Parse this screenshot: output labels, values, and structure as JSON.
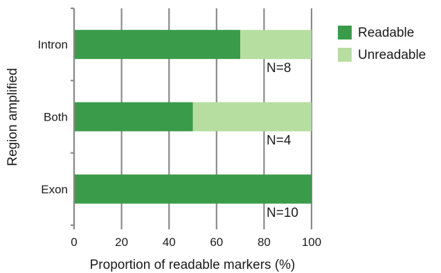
{
  "chart_data": {
    "type": "bar",
    "orientation": "horizontal",
    "stacked": true,
    "xlabel": "Proportion of readable markers (%)",
    "ylabel": "Region amplified",
    "xlim": [
      0,
      100
    ],
    "xticks": [
      "0",
      "20",
      "40",
      "60",
      "80",
      "100"
    ],
    "grid": "vertical",
    "legend_position": "top-right",
    "categories": [
      "Intron",
      "Both",
      "Exon"
    ],
    "series": [
      {
        "name": "Readable",
        "color": "#3a9c4a",
        "values": [
          70,
          50,
          100
        ]
      },
      {
        "name": "Unreadable",
        "color": "#b6dea0",
        "values": [
          30,
          50,
          0
        ]
      }
    ],
    "annotations": [
      "N=8",
      "N=4",
      "N=10"
    ]
  }
}
